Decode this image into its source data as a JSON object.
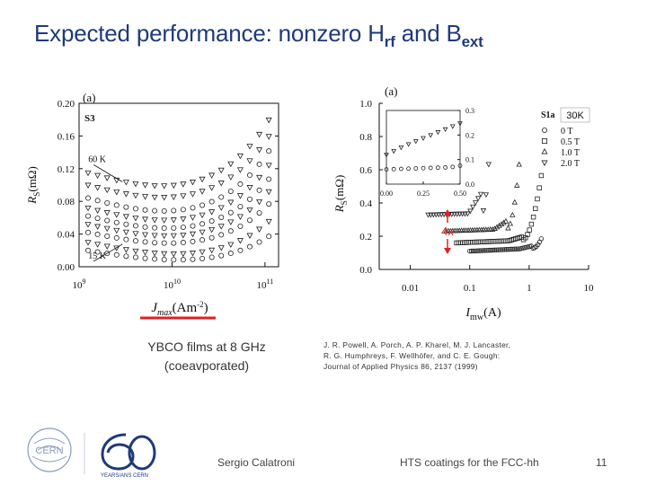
{
  "slide": {
    "title_main": "Expected performance: nonzero H",
    "title_sub1": "rf",
    "title_mid": " and B",
    "title_sub2": "ext",
    "caption_line1": "YBCO films at 8 GHz",
    "caption_line2": "(coeavporated)",
    "reference_line1": "J. R. Powell, A. Porch, A. P. Kharel, M. J. Lancaster,",
    "reference_line2": "R. G. Humphreys, F. Wellhöfer, and C. E. Gough:",
    "reference_line3": "Journal of Applied Physics 86, 2137 (1999)",
    "footer_author": "Sergio Calatroni",
    "footer_title": "HTS coatings for the FCC-hh",
    "page_number": "11",
    "logo_cern": "CERN",
    "logo_anniversary": "YEARS/ANS CERN",
    "accent_color": "#e02020",
    "title_color": "#1f3a7a"
  },
  "chart_data": [
    {
      "type": "scatter",
      "panel_label": "(a)",
      "sample_label": "S3",
      "xscale": "log",
      "xlim": [
        1000000000.0,
        140000000000.0
      ],
      "ylim": [
        0,
        0.2
      ],
      "x_ticks": [
        {
          "value": 1000000000.0,
          "base": "10",
          "exp": "9"
        },
        {
          "value": 10000000000.0,
          "base": "10",
          "exp": "10"
        },
        {
          "value": 100000000000.0,
          "base": "10",
          "exp": "11"
        }
      ],
      "y_ticks": [
        "0.00",
        "0.04",
        "0.08",
        "0.12",
        "0.16",
        "0.20"
      ],
      "xlabel": "J",
      "xlabel_sub": "max",
      "xlabel_unit": "(Am",
      "xlabel_exp": "-2",
      "xlabel_close": ")",
      "ylabel": "R",
      "ylabel_sub": "S",
      "ylabel_unit": "(mΩ)",
      "annotations": [
        {
          "text": "60 K",
          "x": 1100000000.0,
          "y": 0.128
        },
        {
          "text": "15 K",
          "x": 1100000000.0,
          "y": 0.01
        }
      ],
      "series": [
        {
          "marker": "circle",
          "y_low": 0.02,
          "y_high": 0.018,
          "dip": 0.012
        },
        {
          "marker": "triangle-down",
          "y_low": 0.03,
          "y_high": 0.03,
          "dip": 0.016
        },
        {
          "marker": "circle",
          "y_low": 0.042,
          "y_high": 0.048,
          "dip": 0.018
        },
        {
          "marker": "triangle-down",
          "y_low": 0.052,
          "y_high": 0.06,
          "dip": 0.02
        },
        {
          "marker": "circle",
          "y_low": 0.062,
          "y_high": 0.072,
          "dip": 0.022
        },
        {
          "marker": "triangle-down",
          "y_low": 0.072,
          "y_high": 0.086,
          "dip": 0.024
        },
        {
          "marker": "circle",
          "y_low": 0.084,
          "y_high": 0.1,
          "dip": 0.026
        },
        {
          "marker": "triangle-down",
          "y_low": 0.1,
          "y_high": 0.118,
          "dip": 0.026
        },
        {
          "marker": "triangle-down",
          "y_low": 0.115,
          "y_high": 0.135,
          "dip": 0.028
        }
      ]
    },
    {
      "type": "scatter",
      "panel_label": "(a)",
      "sample_label": "S1a",
      "temperature_label": "30K",
      "xscale": "log",
      "xlim": [
        0.003,
        10
      ],
      "ylim": [
        0,
        1.0
      ],
      "x_ticks": [
        {
          "value": 0.01,
          "label": "0.01"
        },
        {
          "value": 0.1,
          "label": "0.1"
        },
        {
          "value": 1,
          "label": "1"
        },
        {
          "value": 10,
          "label": "10"
        }
      ],
      "y_ticks": [
        "0.0",
        "0.2",
        "0.4",
        "0.6",
        "0.8",
        "1.0"
      ],
      "xlabel": "I",
      "xlabel_sub": "mw",
      "xlabel_unit": "(A)",
      "ylabel": "R",
      "ylabel_sub": "S",
      "ylabel_unit": "(mΩ)",
      "ratio_label": "4x",
      "legend": [
        {
          "marker": "circle",
          "label": "0 T"
        },
        {
          "marker": "square",
          "label": "0.5 T"
        },
        {
          "marker": "triangle-up",
          "label": "1.0 T"
        },
        {
          "marker": "triangle-down",
          "label": "2.0 T"
        }
      ],
      "series": [
        {
          "marker": "circle",
          "start_x": 0.1,
          "y0": 0.11,
          "knee_x": 1.15,
          "rise": 0.06
        },
        {
          "marker": "square",
          "start_x": 0.06,
          "y0": 0.16,
          "knee_x": 0.75,
          "rise": 0.08
        },
        {
          "marker": "triangle-up",
          "start_x": 0.04,
          "y0": 0.23,
          "knee_x": 0.42,
          "rise": 0.2
        },
        {
          "marker": "triangle-down",
          "start_x": 0.02,
          "y0": 0.33,
          "knee_x": 0.16,
          "rise": 0.5
        }
      ],
      "inset": {
        "xlim": [
          0,
          0.5
        ],
        "ylim": [
          0,
          0.3
        ],
        "x_ticks": [
          "0.00",
          "0.25",
          "0.50"
        ],
        "y_ticks": [
          "0.0",
          "0.1",
          "0.2",
          "0.3"
        ],
        "series": [
          {
            "marker": "triangle-down",
            "x": [
              0.0,
              0.05,
              0.1,
              0.15,
              0.2,
              0.25,
              0.3,
              0.35,
              0.4,
              0.45,
              0.5
            ],
            "y": [
              0.12,
              0.135,
              0.15,
              0.163,
              0.175,
              0.188,
              0.2,
              0.212,
              0.224,
              0.236,
              0.248
            ]
          },
          {
            "marker": "circle",
            "x": [
              0.0,
              0.05,
              0.1,
              0.15,
              0.2,
              0.25,
              0.3,
              0.35,
              0.4,
              0.45,
              0.5
            ],
            "y": [
              0.06,
              0.061,
              0.062,
              0.063,
              0.064,
              0.065,
              0.066,
              0.067,
              0.068,
              0.07,
              0.075
            ]
          }
        ]
      }
    }
  ]
}
